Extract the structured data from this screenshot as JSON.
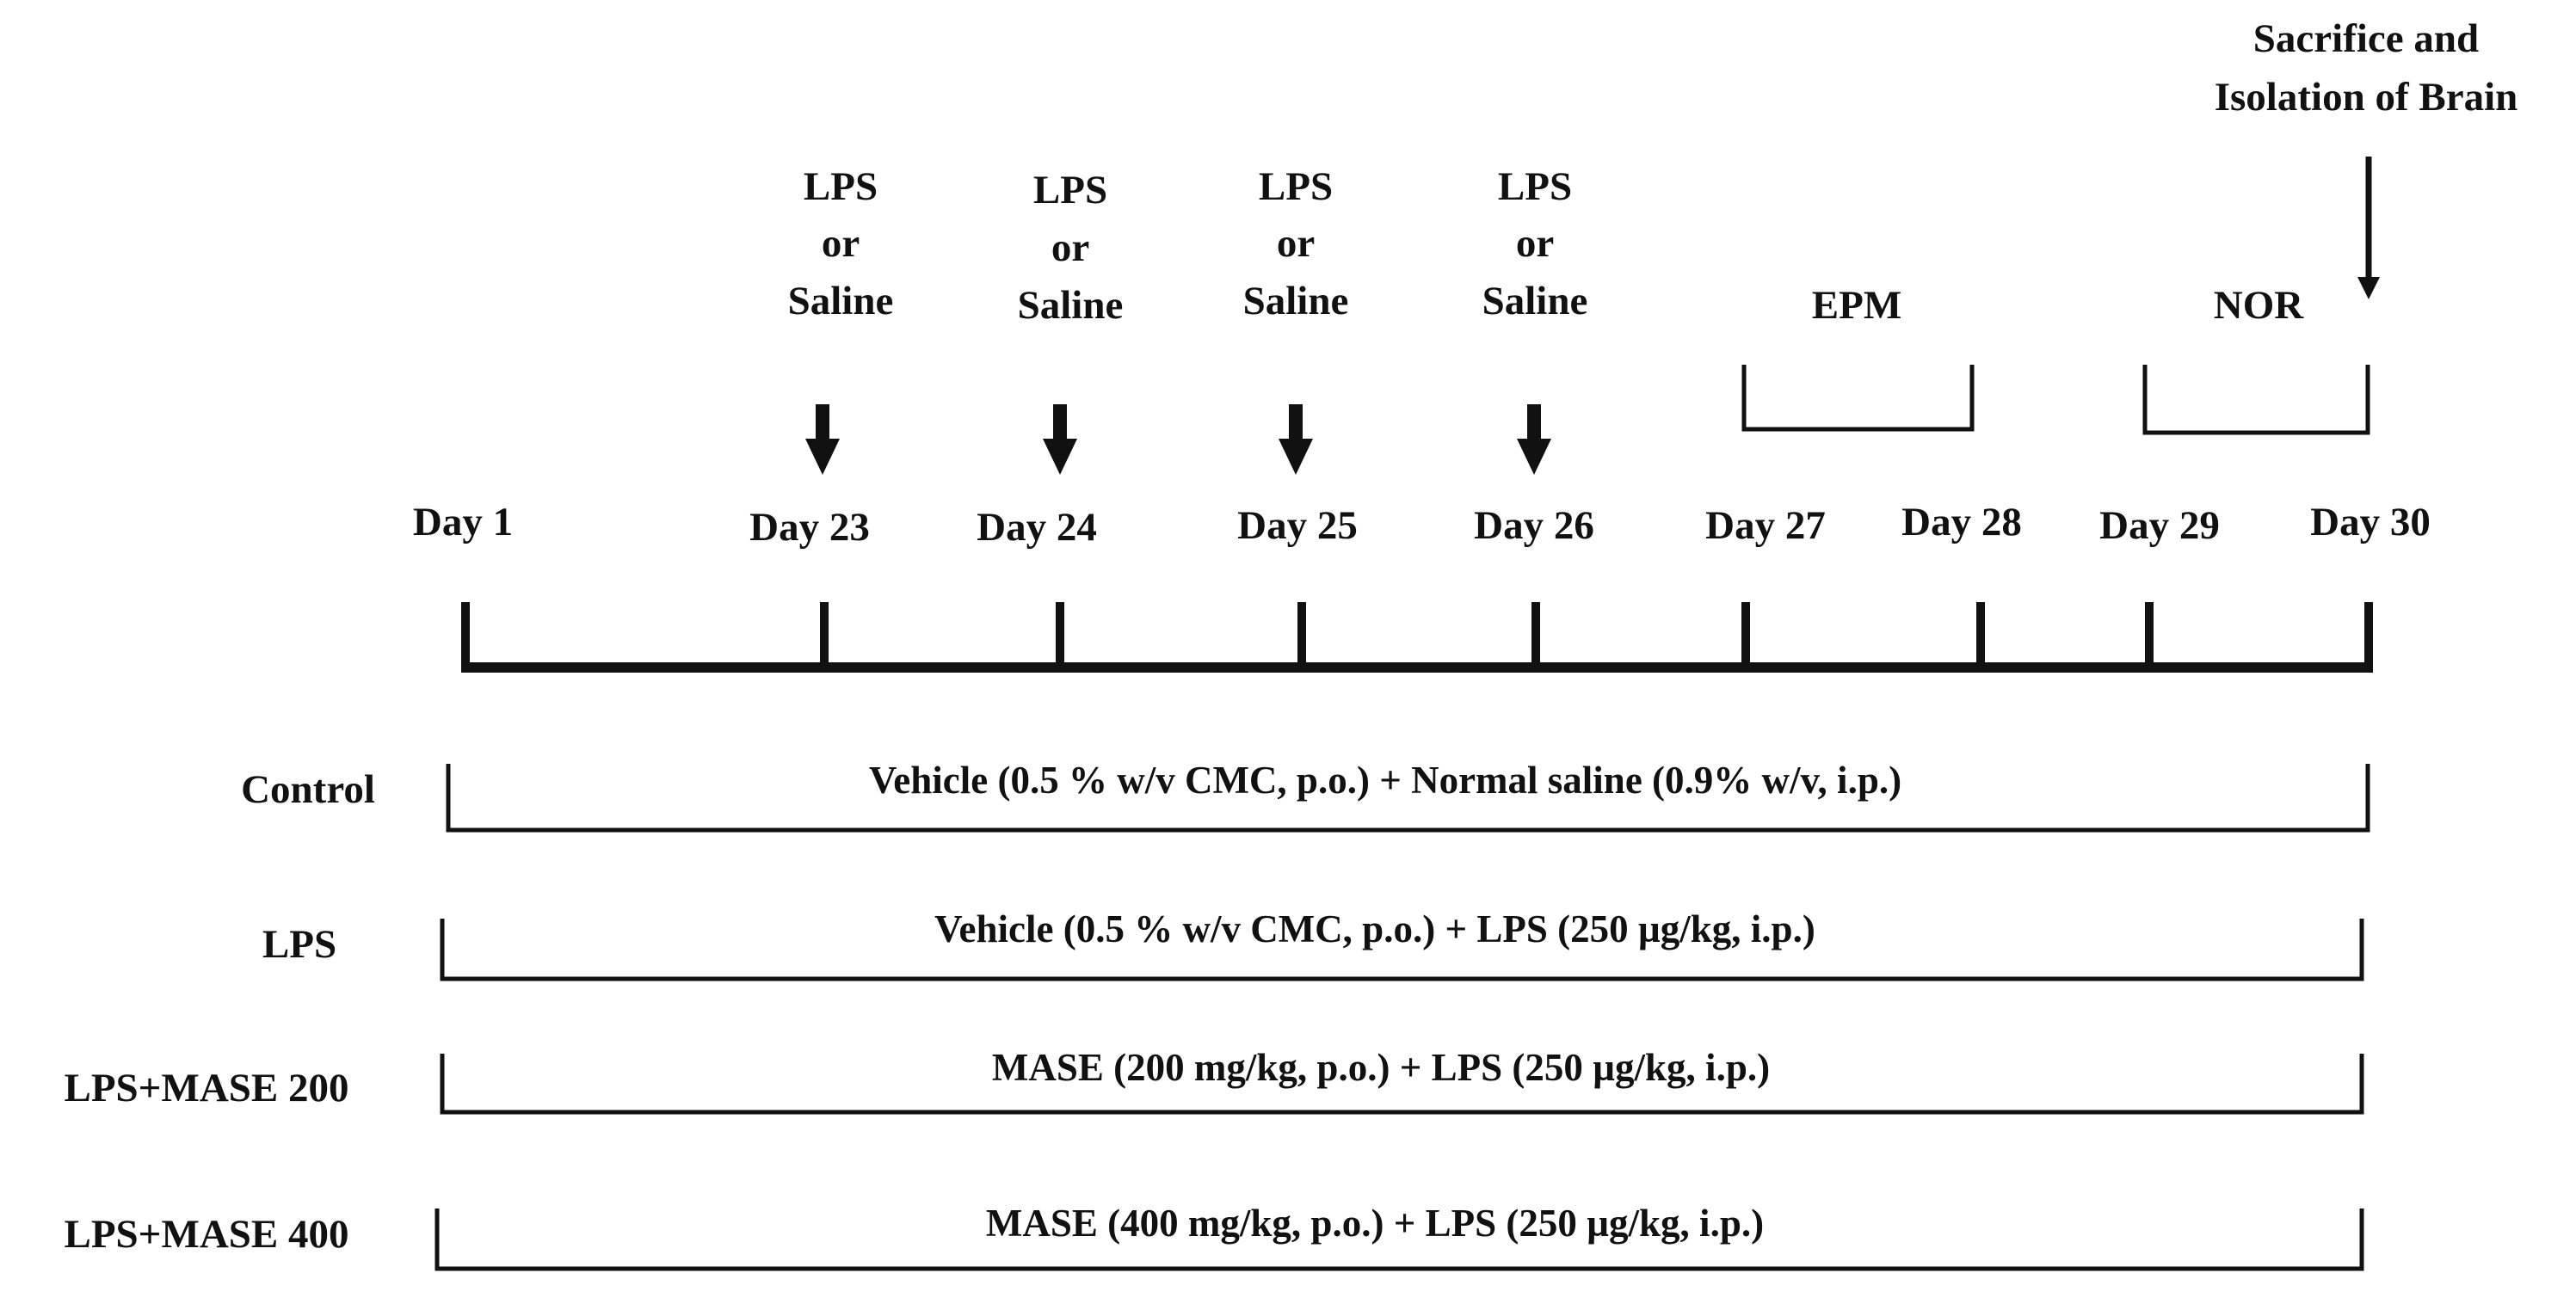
{
  "timeline": {
    "days": [
      "Day 1",
      "Day 23",
      "Day 24",
      "Day 25",
      "Day 26",
      "Day 27",
      "Day 28",
      "Day 29",
      "Day 30"
    ]
  },
  "injections": [
    {
      "lines": [
        "LPS",
        "or",
        "Saline"
      ]
    },
    {
      "lines": [
        "LPS",
        "or",
        "Saline"
      ]
    },
    {
      "lines": [
        "LPS",
        "or",
        "Saline"
      ]
    },
    {
      "lines": [
        "LPS",
        "or",
        "Saline"
      ]
    }
  ],
  "periods": [
    {
      "label": "EPM"
    },
    {
      "label": "NOR"
    }
  ],
  "endpoint": {
    "lines": [
      "Sacrifice and",
      "Isolation of Brain"
    ]
  },
  "groups": [
    {
      "name": "Control",
      "treatment": "Vehicle (0.5 % w/v CMC, p.o.) + Normal saline (0.9% w/v, i.p.)"
    },
    {
      "name": "LPS",
      "treatment": "Vehicle (0.5 % w/v CMC, p.o.) + LPS (250 µg/kg, i.p.)"
    },
    {
      "name": "LPS+MASE 200",
      "treatment": "MASE (200 mg/kg, p.o.) + LPS (250 µg/kg, i.p.)"
    },
    {
      "name": "LPS+MASE 400",
      "treatment": "MASE (400 mg/kg, p.o.) + LPS (250 µg/kg, i.p.)"
    }
  ],
  "colors": {
    "ink": "#111111",
    "background": "#ffffff"
  }
}
